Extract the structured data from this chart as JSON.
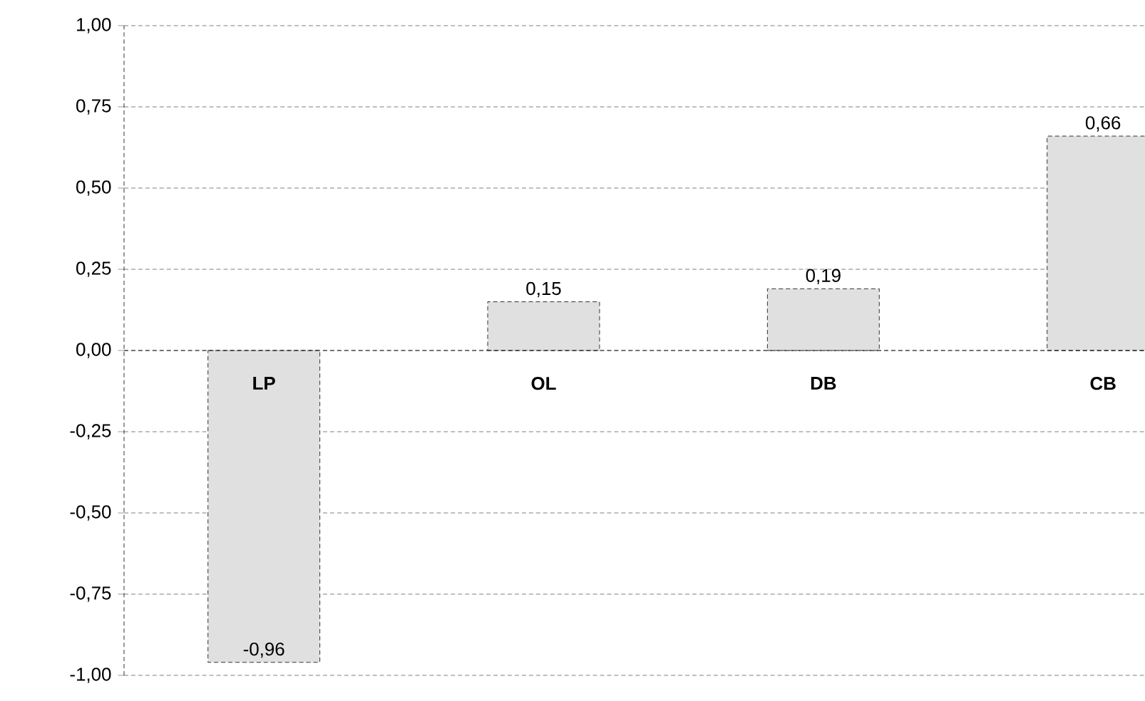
{
  "chart_data": {
    "type": "bar",
    "categories": [
      "LP",
      "OL",
      "DB",
      "CB"
    ],
    "values": [
      -0.96,
      0.15,
      0.19,
      0.66
    ],
    "value_labels": [
      "-0,96",
      "0,15",
      "0,19",
      "0,66"
    ],
    "color": "#e0e0e0",
    "ylim": [
      -1,
      1
    ],
    "yticks": [
      {
        "value": -1,
        "label": "-1,00"
      },
      {
        "value": -0.75,
        "label": "-0,75"
      },
      {
        "value": -0.5,
        "label": "-0,50"
      },
      {
        "value": -0.25,
        "label": "-0,25"
      },
      {
        "value": 0,
        "label": "0,00"
      },
      {
        "value": 0.25,
        "label": "0,25"
      },
      {
        "value": 0.5,
        "label": "0,50"
      },
      {
        "value": 0.75,
        "label": "0,75"
      },
      {
        "value": 1,
        "label": "1,00"
      }
    ],
    "ref_lines": [
      {
        "axis": "y",
        "value": 0,
        "color": "#000000",
        "line_style": "dashed"
      }
    ],
    "grid": "y"
  }
}
